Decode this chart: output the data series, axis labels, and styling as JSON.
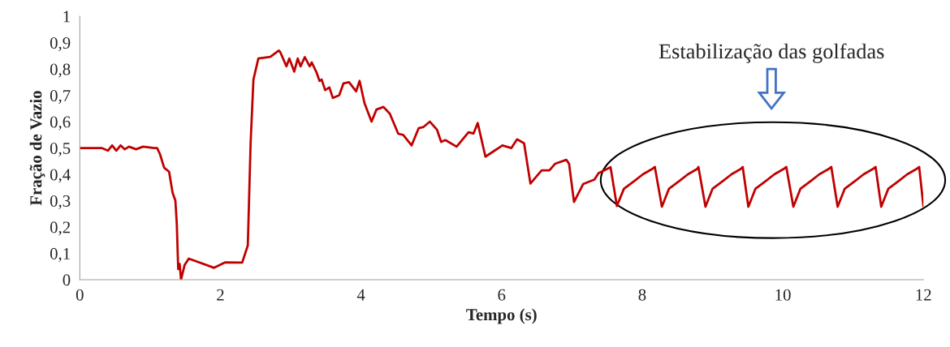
{
  "chart_data": {
    "type": "line",
    "xlabel": "Tempo (s)",
    "ylabel": "Fração de Vazio",
    "annotations": [
      "Estabilização das golfadas"
    ],
    "xlim": [
      0,
      12
    ],
    "xticks": [
      0,
      2,
      4,
      6,
      8,
      10,
      12
    ],
    "ylim": [
      0,
      1
    ],
    "yticks": [
      0,
      {
        "value": 0.1,
        "label": "0,1"
      },
      {
        "value": 0.2,
        "label": "0,2"
      },
      {
        "value": 0.3,
        "label": "0,3"
      },
      {
        "value": 0.4,
        "label": "0,4"
      },
      {
        "value": 0.5,
        "label": "0,5"
      },
      {
        "value": 0.6,
        "label": "0,6"
      },
      {
        "value": 0.7,
        "label": "0,7"
      },
      {
        "value": 0.8,
        "label": "0,8"
      },
      {
        "value": 0.9,
        "label": "0,9"
      },
      1
    ],
    "x": [
      0,
      0.31,
      0.4,
      0.46,
      0.52,
      0.58,
      0.64,
      0.7,
      0.8,
      0.9,
      1.06,
      1.1,
      1.14,
      1.2,
      1.27,
      1.32,
      1.36,
      1.38,
      1.4,
      1.42,
      1.44,
      1.49,
      1.55,
      1.91,
      2.07,
      2.31,
      2.39,
      2.43,
      2.47,
      2.54,
      2.71,
      2.83,
      2.85,
      2.94,
      2.98,
      3.05,
      3.1,
      3.14,
      3.2,
      3.27,
      3.3,
      3.37,
      3.41,
      3.44,
      3.49,
      3.55,
      3.6,
      3.69,
      3.75,
      3.83,
      3.93,
      3.98,
      4.05,
      4.15,
      4.22,
      4.32,
      4.41,
      4.53,
      4.6,
      4.72,
      4.82,
      4.89,
      4.98,
      5.08,
      5.14,
      5.2,
      5.36,
      5.53,
      5.6,
      5.66,
      5.77,
      5.94,
      6.01,
      6.14,
      6.22,
      6.32,
      6.41,
      6.57,
      6.68,
      6.76,
      6.92,
      6.96,
      7.03,
      7.16,
      7.32,
      7.38,
      7.55,
      7.64,
      7.74,
      7.89,
      8.01,
      8.14,
      8.18,
      8.28,
      8.38,
      8.53,
      8.65,
      8.78,
      8.8,
      8.9,
      9.0,
      9.15,
      9.27,
      9.4,
      9.43,
      9.51,
      9.61,
      9.76,
      9.88,
      10.01,
      10.05,
      10.15,
      10.25,
      10.4,
      10.52,
      10.65,
      10.69,
      10.78,
      10.88,
      11.03,
      11.15,
      11.28,
      11.32,
      11.4,
      11.5,
      11.65,
      11.77,
      11.9,
      11.94,
      12.0
    ],
    "series": [
      {
        "color": "#c00000",
        "values": [
          0.5,
          0.5,
          0.49,
          0.51,
          0.49,
          0.51,
          0.495,
          0.505,
          0.495,
          0.505,
          0.5,
          0.5,
          0.477,
          0.425,
          0.41,
          0.33,
          0.3,
          0.21,
          0.04,
          0.06,
          0.0,
          0.055,
          0.08,
          0.045,
          0.066,
          0.065,
          0.13,
          0.52,
          0.76,
          0.84,
          0.846,
          0.87,
          0.865,
          0.81,
          0.84,
          0.79,
          0.84,
          0.81,
          0.845,
          0.81,
          0.825,
          0.785,
          0.755,
          0.76,
          0.72,
          0.73,
          0.69,
          0.7,
          0.745,
          0.75,
          0.715,
          0.755,
          0.67,
          0.6,
          0.646,
          0.656,
          0.63,
          0.554,
          0.55,
          0.51,
          0.575,
          0.58,
          0.6,
          0.57,
          0.523,
          0.53,
          0.505,
          0.56,
          0.555,
          0.595,
          0.467,
          0.497,
          0.51,
          0.5,
          0.533,
          0.518,
          0.365,
          0.415,
          0.415,
          0.44,
          0.455,
          0.44,
          0.295,
          0.363,
          0.38,
          0.405,
          0.427,
          0.28,
          0.345,
          0.375,
          0.4,
          0.42,
          0.428,
          0.277,
          0.345,
          0.375,
          0.4,
          0.42,
          0.428,
          0.277,
          0.345,
          0.375,
          0.4,
          0.42,
          0.428,
          0.277,
          0.345,
          0.375,
          0.4,
          0.42,
          0.428,
          0.277,
          0.345,
          0.375,
          0.4,
          0.42,
          0.428,
          0.277,
          0.345,
          0.375,
          0.4,
          0.42,
          0.428,
          0.277,
          0.345,
          0.375,
          0.4,
          0.42,
          0.428,
          0.28
        ]
      }
    ]
  }
}
